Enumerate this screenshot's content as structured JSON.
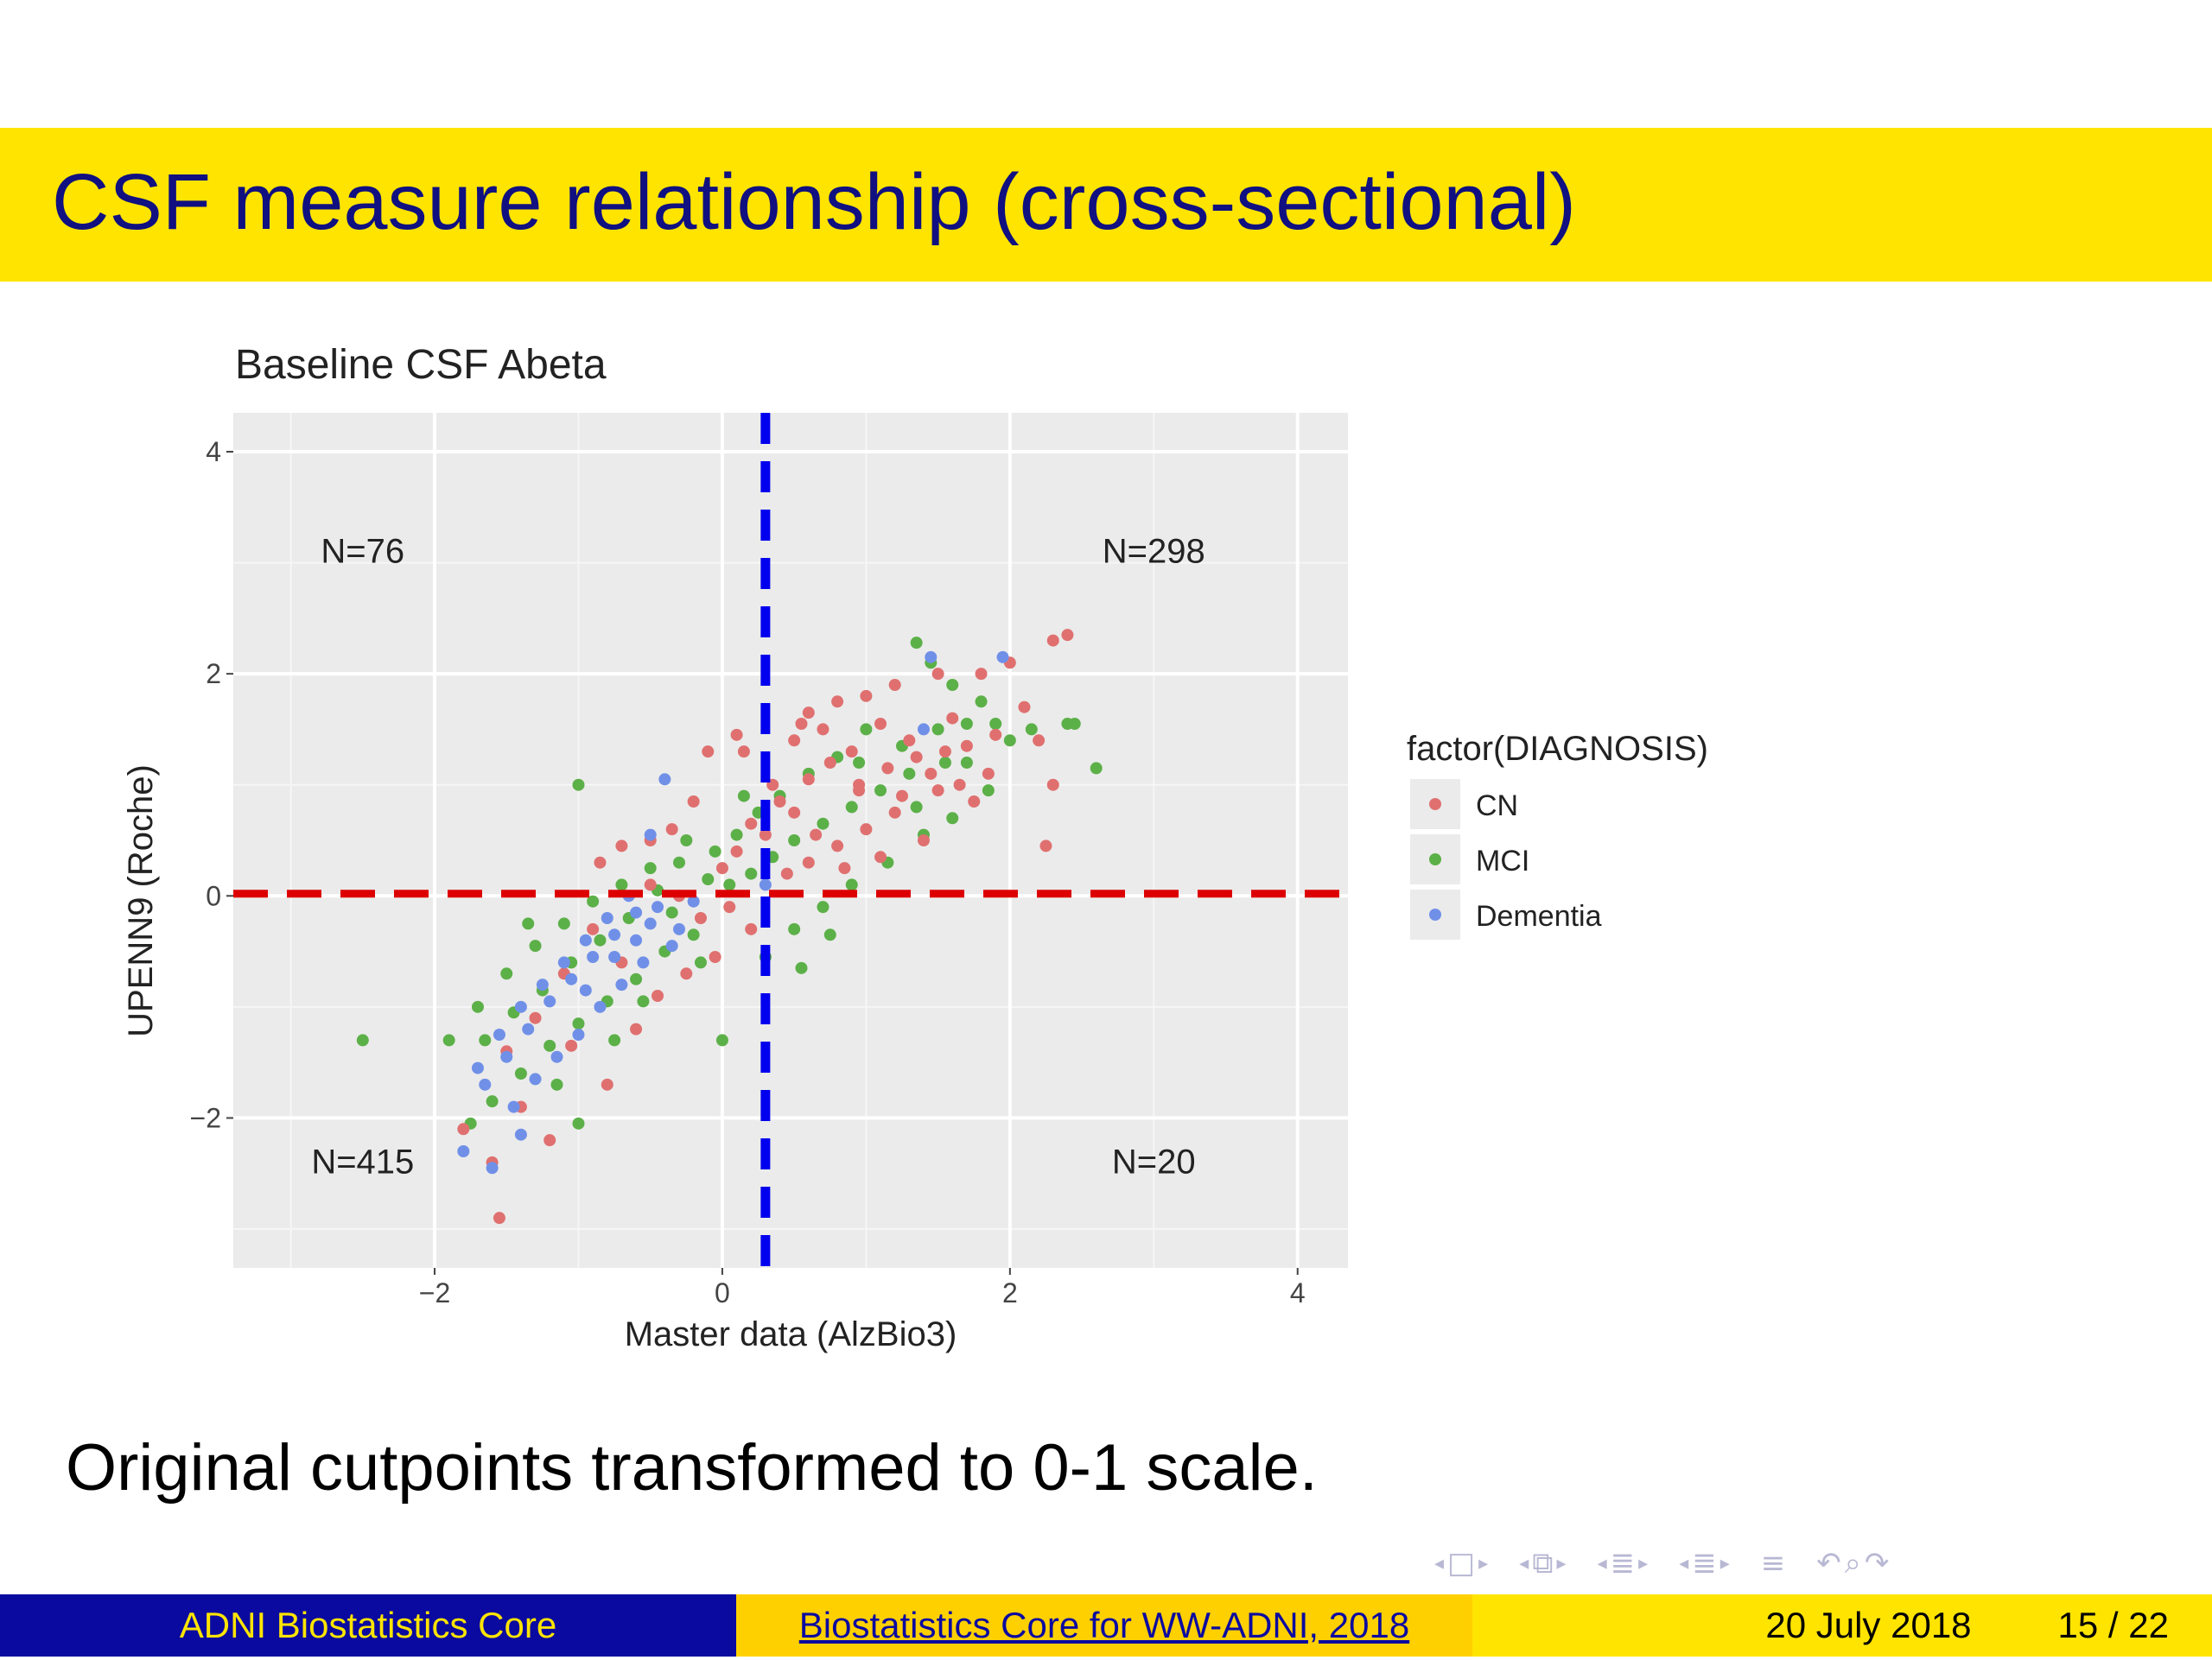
{
  "slide": {
    "title": "CSF measure relationship (cross-sectional)",
    "body_text": "Original cutpoints transformed to 0-1 scale.",
    "footer": {
      "left": "ADNI Biostatistics Core",
      "middle": "Biostatistics Core for WW-ADNI, 2018",
      "date": "20 July 2018",
      "page": "15 / 22"
    },
    "colors": {
      "title_bar": "#ffe400",
      "title_text": "#101080",
      "footer_left_bg": "#0a0aa0",
      "footer_mid_bg": "#ffd000",
      "footer_right_bg": "#ffe400"
    },
    "nav_icons": [
      "arrow-left-icon",
      "frame-icon",
      "arrow-right-icon",
      "subsection-icon",
      "section-icon",
      "align-icon",
      "search-icon"
    ]
  },
  "chart_data": {
    "type": "scatter",
    "title": "Baseline CSF Abeta",
    "xlabel": "Master data (AlzBio3)",
    "ylabel": "UPENN9 (Roche)",
    "xlim": [
      -3.4,
      4.35
    ],
    "ylim": [
      -3.35,
      4.35
    ],
    "xticks": [
      -2,
      0,
      2,
      4
    ],
    "yticks": [
      -2,
      0,
      2,
      4
    ],
    "grid": true,
    "legend": {
      "title": "factor(DIAGNOSIS)",
      "placement": "right",
      "entries": [
        "CN",
        "MCI",
        "Dementia"
      ]
    },
    "cutpoints": {
      "x": 0.3,
      "y": 0.02
    },
    "quadrant_labels": [
      {
        "text": "N=76",
        "x": -2.5,
        "y": 3.0
      },
      {
        "text": "N=298",
        "x": 3.0,
        "y": 3.0
      },
      {
        "text": "N=415",
        "x": -2.5,
        "y": -2.5
      },
      {
        "text": "N=20",
        "x": 3.0,
        "y": -2.5
      }
    ],
    "series": [
      {
        "name": "CN",
        "color": "#e07070",
        "points": [
          [
            2.4,
            2.35
          ],
          [
            2.3,
            2.3
          ],
          [
            2.0,
            2.1
          ],
          [
            1.8,
            2.0
          ],
          [
            1.5,
            2.0
          ],
          [
            1.2,
            1.9
          ],
          [
            1.0,
            1.8
          ],
          [
            0.8,
            1.75
          ],
          [
            0.6,
            1.65
          ],
          [
            0.5,
            1.4
          ],
          [
            0.7,
            1.5
          ],
          [
            0.9,
            1.3
          ],
          [
            1.1,
            1.55
          ],
          [
            1.3,
            1.4
          ],
          [
            1.6,
            1.6
          ],
          [
            1.7,
            1.35
          ],
          [
            1.9,
            1.45
          ],
          [
            2.1,
            1.7
          ],
          [
            2.2,
            1.4
          ],
          [
            2.3,
            1.0
          ],
          [
            2.25,
            0.45
          ],
          [
            1.85,
            1.1
          ],
          [
            1.5,
            0.95
          ],
          [
            1.2,
            0.75
          ],
          [
            1.0,
            0.6
          ],
          [
            0.8,
            0.45
          ],
          [
            0.6,
            0.3
          ],
          [
            0.45,
            0.2
          ],
          [
            0.3,
            0.55
          ],
          [
            0.1,
            0.4
          ],
          [
            0.0,
            0.25
          ],
          [
            0.2,
            0.65
          ],
          [
            0.4,
            0.85
          ],
          [
            0.6,
            1.05
          ],
          [
            0.75,
            1.2
          ],
          [
            0.95,
            1.0
          ],
          [
            1.15,
            1.15
          ],
          [
            1.35,
            1.25
          ],
          [
            1.55,
            1.3
          ],
          [
            1.75,
            0.85
          ],
          [
            1.4,
            0.5
          ],
          [
            1.1,
            0.35
          ],
          [
            0.85,
            0.25
          ],
          [
            0.65,
            0.55
          ],
          [
            0.5,
            0.75
          ],
          [
            0.35,
            1.0
          ],
          [
            0.15,
            1.3
          ],
          [
            0.1,
            1.45
          ],
          [
            -0.1,
            1.3
          ],
          [
            -0.2,
            0.85
          ],
          [
            -0.35,
            0.6
          ],
          [
            -0.5,
            0.5
          ],
          [
            -0.7,
            0.45
          ],
          [
            -0.85,
            0.3
          ],
          [
            -0.5,
            0.1
          ],
          [
            -0.3,
            0.0
          ],
          [
            -0.15,
            -0.2
          ],
          [
            0.05,
            -0.1
          ],
          [
            0.2,
            -0.3
          ],
          [
            -0.05,
            -0.55
          ],
          [
            -0.25,
            -0.7
          ],
          [
            -0.45,
            -0.9
          ],
          [
            -0.7,
            -0.6
          ],
          [
            -0.9,
            -0.3
          ],
          [
            -1.1,
            -0.7
          ],
          [
            -1.3,
            -1.1
          ],
          [
            -1.5,
            -1.4
          ],
          [
            -1.4,
            -1.9
          ],
          [
            -1.6,
            -2.4
          ],
          [
            -1.55,
            -2.9
          ],
          [
            -1.8,
            -2.1
          ],
          [
            -1.2,
            -2.2
          ],
          [
            -0.8,
            -1.7
          ],
          [
            -0.6,
            -1.2
          ],
          [
            -1.05,
            -1.35
          ],
          [
            0.95,
            0.95
          ],
          [
            1.25,
            0.9
          ],
          [
            1.45,
            1.1
          ],
          [
            1.65,
            1.0
          ],
          [
            0.55,
            1.55
          ]
        ]
      },
      {
        "name": "MCI",
        "color": "#5cb048",
        "points": [
          [
            1.35,
            2.28
          ],
          [
            1.45,
            2.1
          ],
          [
            1.6,
            1.9
          ],
          [
            1.8,
            1.75
          ],
          [
            1.9,
            1.55
          ],
          [
            2.0,
            1.4
          ],
          [
            2.4,
            1.55
          ],
          [
            2.45,
            1.55
          ],
          [
            2.6,
            1.15
          ],
          [
            2.15,
            1.5
          ],
          [
            1.7,
            1.2
          ],
          [
            1.5,
            1.5
          ],
          [
            1.3,
            1.1
          ],
          [
            1.1,
            0.95
          ],
          [
            0.9,
            0.8
          ],
          [
            0.7,
            0.65
          ],
          [
            0.5,
            0.5
          ],
          [
            0.35,
            0.35
          ],
          [
            0.2,
            0.2
          ],
          [
            0.05,
            0.1
          ],
          [
            -0.1,
            0.15
          ],
          [
            -0.3,
            0.3
          ],
          [
            -0.5,
            0.25
          ],
          [
            -0.7,
            0.1
          ],
          [
            -0.9,
            -0.05
          ],
          [
            -1.1,
            -0.25
          ],
          [
            -1.3,
            -0.45
          ],
          [
            -1.5,
            -0.7
          ],
          [
            -1.7,
            -1.0
          ],
          [
            -1.9,
            -1.3
          ],
          [
            -2.5,
            -1.3
          ],
          [
            -1.0,
            1.0
          ],
          [
            -0.2,
            -0.35
          ],
          [
            -0.4,
            -0.5
          ],
          [
            -0.6,
            -0.75
          ],
          [
            -0.8,
            -0.95
          ],
          [
            -1.0,
            -1.15
          ],
          [
            -1.2,
            -1.35
          ],
          [
            -1.4,
            -1.6
          ],
          [
            -1.6,
            -1.85
          ],
          [
            -1.75,
            -2.05
          ],
          [
            -1.0,
            -2.05
          ],
          [
            0.0,
            -1.3
          ],
          [
            0.5,
            -0.3
          ],
          [
            0.7,
            -0.1
          ],
          [
            0.9,
            0.1
          ],
          [
            1.15,
            0.3
          ],
          [
            1.4,
            0.55
          ],
          [
            1.6,
            0.7
          ],
          [
            1.85,
            0.95
          ],
          [
            1.0,
            1.5
          ],
          [
            0.8,
            1.25
          ],
          [
            0.6,
            1.1
          ],
          [
            0.4,
            0.9
          ],
          [
            0.25,
            0.75
          ],
          [
            0.1,
            0.55
          ],
          [
            -0.05,
            0.4
          ],
          [
            -0.25,
            0.5
          ],
          [
            -0.45,
            0.05
          ],
          [
            -0.65,
            -0.2
          ],
          [
            -0.85,
            -0.4
          ],
          [
            -1.05,
            -0.6
          ],
          [
            -1.25,
            -0.85
          ],
          [
            -1.45,
            -1.05
          ],
          [
            -1.65,
            -1.3
          ],
          [
            -1.35,
            -0.25
          ],
          [
            -1.15,
            -1.7
          ],
          [
            -0.75,
            -1.3
          ],
          [
            -0.55,
            -0.95
          ],
          [
            -0.35,
            -0.15
          ],
          [
            0.3,
            -0.55
          ],
          [
            0.55,
            -0.65
          ],
          [
            0.75,
            -0.35
          ],
          [
            1.25,
            1.35
          ],
          [
            1.55,
            1.2
          ],
          [
            1.7,
            1.55
          ],
          [
            0.95,
            1.2
          ],
          [
            1.35,
            0.8
          ],
          [
            0.15,
            0.9
          ],
          [
            -0.15,
            -0.6
          ]
        ]
      },
      {
        "name": "Dementia",
        "color": "#7090e8",
        "points": [
          [
            1.45,
            2.15
          ],
          [
            1.95,
            2.15
          ],
          [
            -0.4,
            1.05
          ],
          [
            1.4,
            1.5
          ],
          [
            0.3,
            0.1
          ],
          [
            -0.5,
            0.55
          ],
          [
            -0.6,
            -0.15
          ],
          [
            -0.75,
            -0.35
          ],
          [
            -0.9,
            -0.55
          ],
          [
            -1.05,
            -0.75
          ],
          [
            -1.2,
            -0.95
          ],
          [
            -1.35,
            -1.2
          ],
          [
            -1.5,
            -1.45
          ],
          [
            -1.65,
            -1.7
          ],
          [
            -1.8,
            -2.3
          ],
          [
            -1.6,
            -2.45
          ],
          [
            -1.7,
            -1.55
          ],
          [
            -1.55,
            -1.25
          ],
          [
            -1.4,
            -1.0
          ],
          [
            -1.25,
            -0.8
          ],
          [
            -1.1,
            -0.6
          ],
          [
            -0.95,
            -0.4
          ],
          [
            -0.8,
            -0.2
          ],
          [
            -0.65,
            0.0
          ],
          [
            -0.5,
            -0.25
          ],
          [
            -0.35,
            -0.45
          ],
          [
            -0.55,
            -0.6
          ],
          [
            -0.7,
            -0.8
          ],
          [
            -0.85,
            -1.0
          ],
          [
            -1.0,
            -1.25
          ],
          [
            -1.15,
            -1.45
          ],
          [
            -1.3,
            -1.65
          ],
          [
            -1.45,
            -1.9
          ],
          [
            -1.4,
            -2.15
          ],
          [
            -0.95,
            -0.85
          ],
          [
            -0.75,
            -0.55
          ],
          [
            -0.6,
            -0.4
          ],
          [
            -0.45,
            -0.1
          ],
          [
            -0.3,
            -0.3
          ],
          [
            -0.2,
            -0.05
          ]
        ]
      }
    ]
  }
}
